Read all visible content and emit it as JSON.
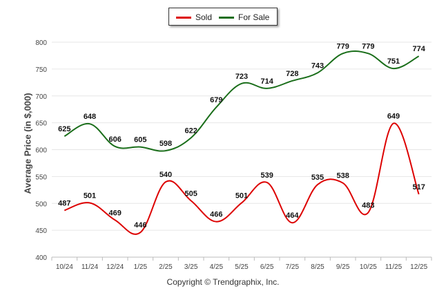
{
  "chart_data": {
    "type": "line",
    "categories": [
      "10/24",
      "11/24",
      "12/24",
      "1/25",
      "2/25",
      "3/25",
      "4/25",
      "5/25",
      "6/25",
      "7/25",
      "8/25",
      "9/25",
      "10/25",
      "11/25",
      "12/25"
    ],
    "series": [
      {
        "name": "Sold",
        "color": "#dd0000",
        "values": [
          487,
          501,
          469,
          446,
          540,
          505,
          466,
          501,
          539,
          464,
          535,
          538,
          483,
          649,
          517
        ]
      },
      {
        "name": "For Sale",
        "color": "#1a6e1a",
        "values": [
          625,
          648,
          606,
          605,
          598,
          622,
          679,
          723,
          714,
          728,
          743,
          779,
          779,
          751,
          774
        ]
      }
    ],
    "ylabel": "Average Price (in $,000)",
    "xlabel": "",
    "ylim": [
      400,
      800
    ],
    "yticks": [
      400,
      450,
      500,
      550,
      600,
      650,
      700,
      750,
      800
    ],
    "grid": true,
    "legend": "top-center"
  },
  "legend": {
    "sold_label": "Sold",
    "for_sale_label": "For Sale"
  },
  "footer": {
    "copyright": "Copyright © Trendgraphix, Inc."
  }
}
